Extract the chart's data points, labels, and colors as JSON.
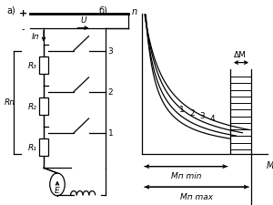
{
  "fig_width": 3.0,
  "fig_height": 2.26,
  "dpi": 100,
  "bg_color": "#ffffff",
  "label_a": "a)",
  "label_b": "б)",
  "plus_label": "+",
  "minus_label": "-",
  "Ip_label": "Iп",
  "U_label": "U",
  "Rp_label": "Rп",
  "R1_label": "R₁",
  "R2_label": "R₂",
  "R3_label": "R₃",
  "E_label": "E",
  "n_label": "n",
  "M_label": "M",
  "deltaM_label": "ΔM",
  "Mmin_label": "Mп min",
  "Mmax_label": "Mп max",
  "curve_labels": [
    "1",
    "2",
    "3",
    "4"
  ],
  "lw": 0.9
}
